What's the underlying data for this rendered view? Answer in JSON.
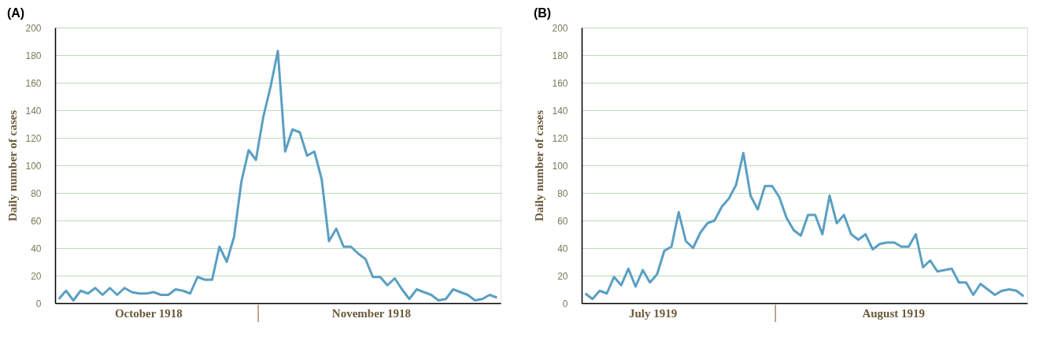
{
  "chart_data": [
    {
      "type": "line",
      "title": "(A)",
      "ylabel": "Daily number of cases",
      "color": "#5b9fc2",
      "categories": [
        null,
        null,
        null,
        null,
        null,
        null,
        null,
        null,
        null,
        null,
        null,
        null,
        null,
        null,
        null,
        null,
        null,
        null,
        null,
        null,
        null,
        null,
        null,
        null,
        null,
        null,
        null,
        null,
        null,
        null,
        null,
        null,
        null,
        null,
        null,
        null,
        null,
        null,
        null,
        null,
        null,
        null,
        null,
        null,
        null,
        null,
        null,
        null,
        null,
        null,
        null,
        null,
        null,
        null,
        null,
        null,
        null,
        null,
        null,
        null,
        null
      ],
      "values": [
        3,
        9,
        2,
        9,
        7,
        11,
        6,
        11,
        6,
        11,
        8,
        7,
        7,
        8,
        6,
        6,
        10,
        9,
        7,
        19,
        17,
        17,
        41,
        30,
        48,
        88,
        111,
        104,
        135,
        157,
        183,
        110,
        126,
        124,
        107,
        110,
        90,
        45,
        54,
        41,
        41,
        36,
        32,
        19,
        19,
        13,
        18,
        10,
        3,
        10,
        8,
        6,
        2,
        3,
        10,
        8,
        6,
        2,
        3,
        6,
        4
      ],
      "ylim": [
        0,
        200
      ],
      "yticks": [
        0,
        20,
        40,
        60,
        80,
        100,
        120,
        140,
        160,
        180,
        200
      ],
      "grid": "y",
      "tick_labels": "y",
      "annotations": [
        "October 1918",
        "November 1918"
      ]
    },
    {
      "type": "line",
      "title": "(B)",
      "ylabel": "Daily number of cases",
      "color": "#5b9fc2",
      "categories": [
        null,
        null,
        null,
        null,
        null,
        null,
        null,
        null,
        null,
        null,
        null,
        null,
        null,
        null,
        null,
        null,
        null,
        null,
        null,
        null,
        null,
        null,
        null,
        null,
        null,
        null,
        null,
        null,
        null,
        null,
        null,
        null,
        null,
        null,
        null,
        null,
        null,
        null,
        null,
        null,
        null,
        null,
        null,
        null,
        null,
        null,
        null,
        null,
        null,
        null,
        null,
        null,
        null,
        null,
        null,
        null,
        null,
        null,
        null,
        null,
        null,
        null
      ],
      "values": [
        7,
        3,
        9,
        7,
        19,
        13,
        25,
        12,
        24,
        15,
        21,
        38,
        41,
        66,
        45,
        40,
        51,
        58,
        60,
        70,
        76,
        86,
        109,
        78,
        68,
        85,
        85,
        77,
        62,
        53,
        49,
        64,
        64,
        50,
        78,
        58,
        64,
        50,
        46,
        50,
        39,
        43,
        44,
        44,
        41,
        41,
        50,
        26,
        31,
        23,
        24,
        25,
        15,
        15,
        6,
        14,
        10,
        6,
        9,
        10,
        9,
        5
      ],
      "ylim": [
        0,
        200
      ],
      "yticks": [
        0,
        20,
        40,
        60,
        80,
        100,
        120,
        140,
        160,
        180,
        200
      ],
      "grid": "y",
      "tick_labels": "y",
      "annotations": [
        "July 1919",
        "August 1919"
      ]
    }
  ]
}
